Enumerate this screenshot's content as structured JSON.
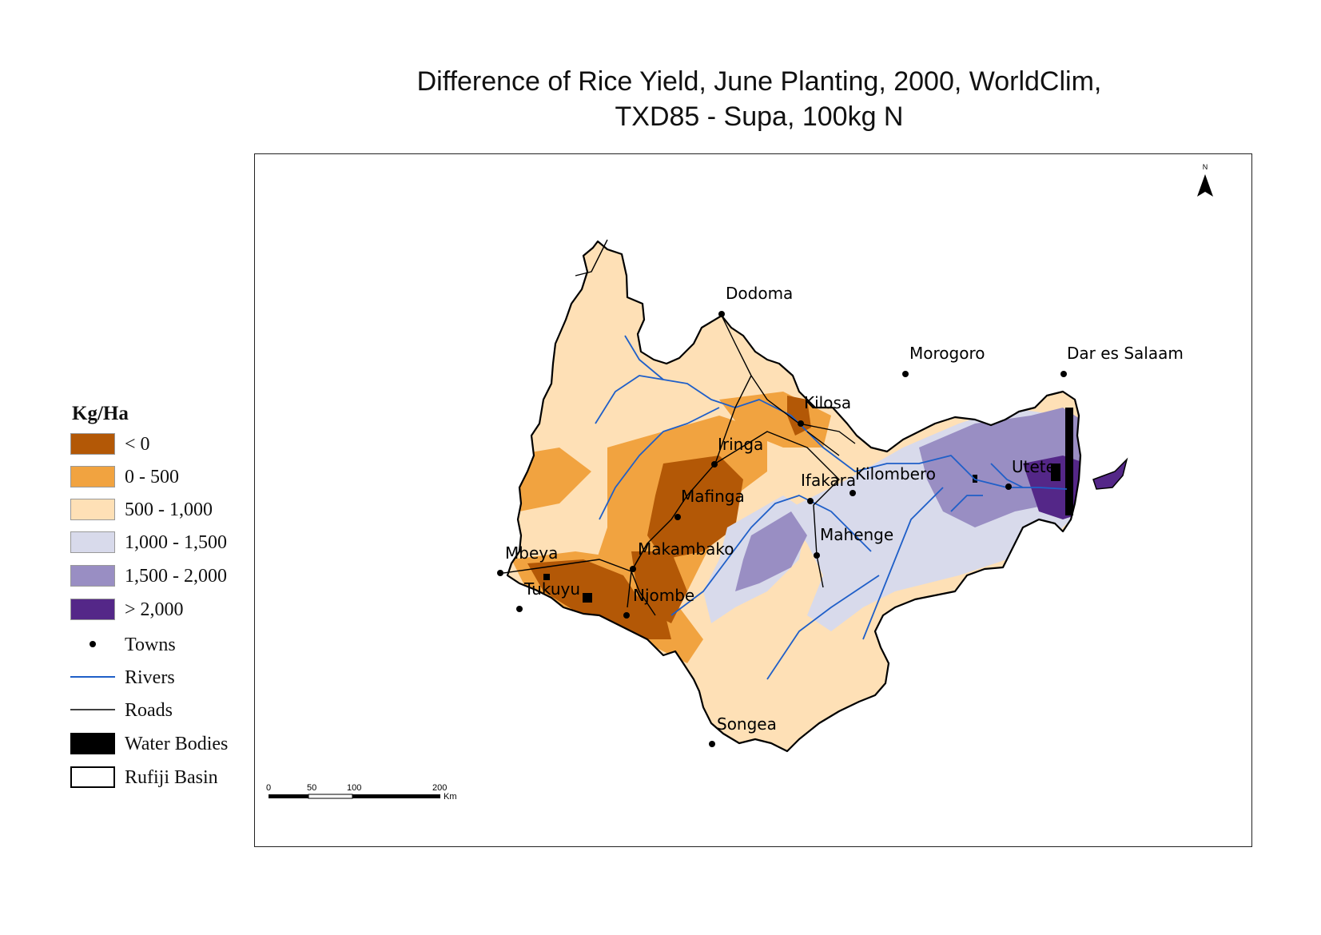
{
  "title_line1": "Difference of Rice Yield, June Planting, 2000, WorldClim,",
  "title_line2": "TXD85 - Supa, 100kg N",
  "legend": {
    "title": "Kg/Ha",
    "classes": [
      {
        "label": "< 0",
        "color": "#b35806"
      },
      {
        "label": "0 - 500",
        "color": "#f1a340"
      },
      {
        "label": "500 - 1,000",
        "color": "#fee0b6"
      },
      {
        "label": "1,000 - 1,500",
        "color": "#d8daeb"
      },
      {
        "label": "1,500 - 2,000",
        "color": "#998ec3"
      },
      {
        "label": "> 2,000",
        "color": "#542788"
      }
    ],
    "towns": "Towns",
    "rivers": "Rivers",
    "roads": "Roads",
    "water": "Water Bodies",
    "basin": "Rufiji Basin"
  },
  "towns": [
    "Dodoma",
    "Morogoro",
    "Dar es Salaam",
    "Kilosa",
    "Iringa",
    "Ifakara",
    "Kilombero",
    "Utete",
    "Mafinga",
    "Mahenge",
    "Mbeya",
    "Makambako",
    "Tukuyu",
    "Njombe",
    "Songea"
  ],
  "scale_bar": {
    "ticks": [
      "0",
      "50",
      "100",
      "200"
    ],
    "unit": "Km"
  },
  "north_arrow": "N",
  "colors": {
    "river": "#1f5fc8",
    "road": "#000000",
    "water": "#000000"
  }
}
